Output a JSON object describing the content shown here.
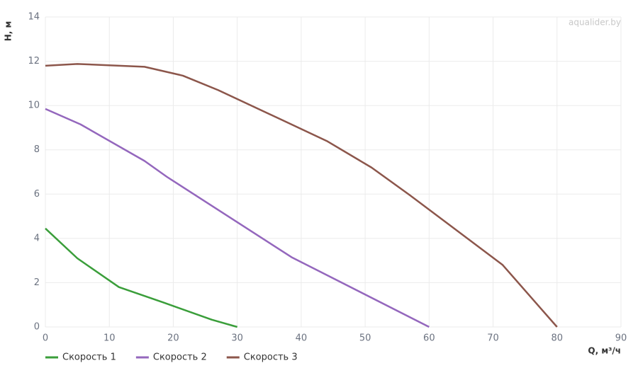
{
  "chart_data": {
    "type": "line",
    "xlabel": "Q, м³/ч",
    "ylabel": "H, м",
    "watermark": "aqualider.by",
    "xlim": [
      0,
      90
    ],
    "xticks": [
      0,
      10,
      20,
      30,
      40,
      50,
      60,
      70,
      80,
      90
    ],
    "ylim": [
      0,
      14
    ],
    "yticks": [
      0,
      2,
      4,
      6,
      8,
      10,
      12,
      14
    ],
    "grid": true,
    "legend": "bottom-left",
    "series": [
      {
        "name": "Скорость 1",
        "color": "#3a9e3a",
        "x": [
          0,
          5,
          11.5,
          18.5,
          26,
          30
        ],
        "values": [
          4.45,
          3.1,
          1.8,
          1.1,
          0.33,
          0
        ]
      },
      {
        "name": "Скорость 2",
        "color": "#9467bd",
        "x": [
          0,
          5.5,
          15.5,
          19,
          38.5,
          60
        ],
        "values": [
          9.85,
          9.15,
          7.5,
          6.78,
          3.15,
          0
        ]
      },
      {
        "name": "Скорость 3",
        "color": "#8c564b",
        "x": [
          0,
          5,
          15.5,
          21.5,
          27,
          37,
          44,
          51,
          57,
          71.5,
          80
        ],
        "values": [
          11.8,
          11.88,
          11.75,
          11.35,
          10.7,
          9.35,
          8.4,
          7.2,
          5.95,
          2.8,
          0
        ]
      }
    ]
  }
}
